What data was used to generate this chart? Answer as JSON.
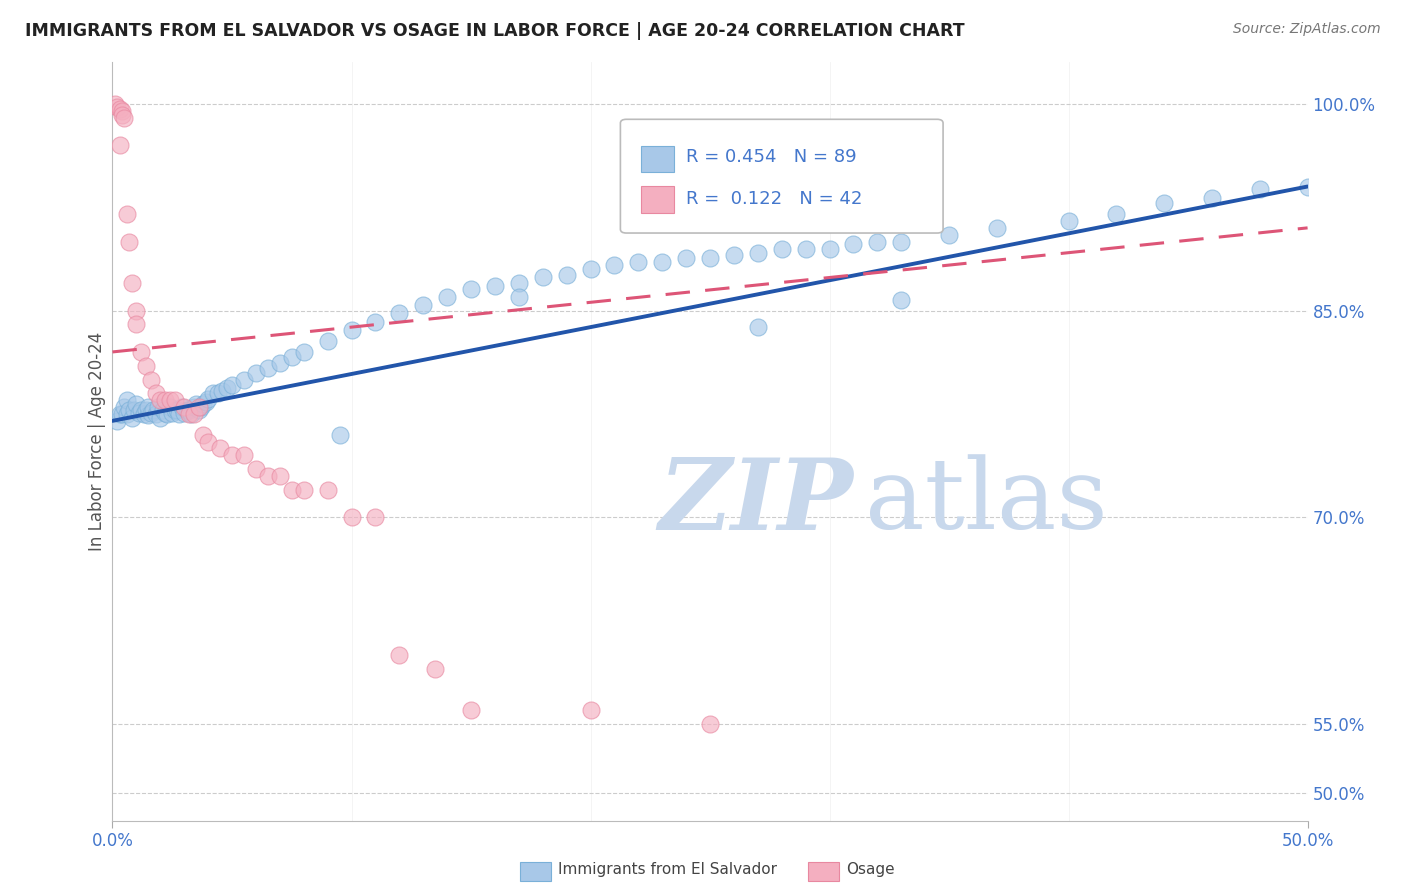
{
  "title": "IMMIGRANTS FROM EL SALVADOR VS OSAGE IN LABOR FORCE | AGE 20-24 CORRELATION CHART",
  "source": "Source: ZipAtlas.com",
  "ylabel": "In Labor Force | Age 20-24",
  "xmin": 0.0,
  "xmax": 0.5,
  "ymin": 0.48,
  "ymax": 1.03,
  "ytick_labels": [
    "50.0%",
    "55.0%",
    "70.0%",
    "85.0%",
    "100.0%"
  ],
  "ytick_values": [
    0.5,
    0.55,
    0.7,
    0.85,
    1.0
  ],
  "xtick_labels": [
    "0.0%",
    "50.0%"
  ],
  "xtick_values": [
    0.0,
    0.5
  ],
  "legend_entry1": "Immigrants from El Salvador",
  "legend_entry2": "Osage",
  "r1": 0.454,
  "n1": 89,
  "r2": 0.122,
  "n2": 42,
  "color_blue": "#a8c8e8",
  "color_blue_edge": "#7ab0d8",
  "color_pink": "#f4afc0",
  "color_pink_edge": "#e888a0",
  "color_blue_line": "#2255aa",
  "color_pink_line": "#dd5577",
  "background_color": "#ffffff",
  "grid_color": "#cccccc",
  "watermark_color": "#c8d8ec",
  "blue_x": [
    0.002,
    0.003,
    0.004,
    0.005,
    0.006,
    0.006,
    0.007,
    0.008,
    0.009,
    0.01,
    0.011,
    0.012,
    0.013,
    0.014,
    0.015,
    0.015,
    0.016,
    0.017,
    0.018,
    0.019,
    0.02,
    0.021,
    0.022,
    0.023,
    0.024,
    0.025,
    0.026,
    0.027,
    0.028,
    0.029,
    0.03,
    0.031,
    0.032,
    0.033,
    0.034,
    0.035,
    0.036,
    0.037,
    0.038,
    0.039,
    0.04,
    0.042,
    0.044,
    0.046,
    0.048,
    0.05,
    0.055,
    0.06,
    0.065,
    0.07,
    0.075,
    0.08,
    0.09,
    0.1,
    0.11,
    0.12,
    0.13,
    0.14,
    0.15,
    0.16,
    0.17,
    0.18,
    0.19,
    0.2,
    0.21,
    0.22,
    0.23,
    0.24,
    0.25,
    0.26,
    0.27,
    0.28,
    0.29,
    0.3,
    0.31,
    0.32,
    0.33,
    0.35,
    0.37,
    0.4,
    0.42,
    0.44,
    0.46,
    0.48,
    0.5,
    0.33,
    0.27,
    0.17,
    0.095
  ],
  "blue_y": [
    0.77,
    0.775,
    0.775,
    0.78,
    0.775,
    0.785,
    0.778,
    0.772,
    0.778,
    0.782,
    0.776,
    0.778,
    0.775,
    0.778,
    0.774,
    0.78,
    0.776,
    0.778,
    0.775,
    0.78,
    0.772,
    0.778,
    0.776,
    0.775,
    0.78,
    0.776,
    0.778,
    0.778,
    0.775,
    0.78,
    0.776,
    0.778,
    0.778,
    0.775,
    0.78,
    0.782,
    0.778,
    0.78,
    0.782,
    0.784,
    0.786,
    0.79,
    0.79,
    0.792,
    0.794,
    0.796,
    0.8,
    0.805,
    0.808,
    0.812,
    0.816,
    0.82,
    0.828,
    0.836,
    0.842,
    0.848,
    0.854,
    0.86,
    0.866,
    0.868,
    0.87,
    0.874,
    0.876,
    0.88,
    0.883,
    0.885,
    0.885,
    0.888,
    0.888,
    0.89,
    0.892,
    0.895,
    0.895,
    0.895,
    0.898,
    0.9,
    0.9,
    0.905,
    0.91,
    0.915,
    0.92,
    0.928,
    0.932,
    0.938,
    0.94,
    0.858,
    0.838,
    0.86,
    0.76
  ],
  "pink_x": [
    0.001,
    0.002,
    0.003,
    0.003,
    0.004,
    0.004,
    0.005,
    0.006,
    0.007,
    0.008,
    0.01,
    0.01,
    0.012,
    0.014,
    0.016,
    0.018,
    0.02,
    0.022,
    0.024,
    0.026,
    0.03,
    0.032,
    0.034,
    0.036,
    0.038,
    0.04,
    0.045,
    0.05,
    0.055,
    0.06,
    0.065,
    0.07,
    0.075,
    0.08,
    0.09,
    0.1,
    0.11,
    0.12,
    0.135,
    0.15,
    0.2,
    0.25
  ],
  "pink_y": [
    1.0,
    0.998,
    0.996,
    0.97,
    0.995,
    0.992,
    0.99,
    0.92,
    0.9,
    0.87,
    0.85,
    0.84,
    0.82,
    0.81,
    0.8,
    0.79,
    0.785,
    0.785,
    0.785,
    0.785,
    0.78,
    0.775,
    0.775,
    0.78,
    0.76,
    0.755,
    0.75,
    0.745,
    0.745,
    0.735,
    0.73,
    0.73,
    0.72,
    0.72,
    0.72,
    0.7,
    0.7,
    0.6,
    0.59,
    0.56,
    0.56,
    0.55
  ]
}
